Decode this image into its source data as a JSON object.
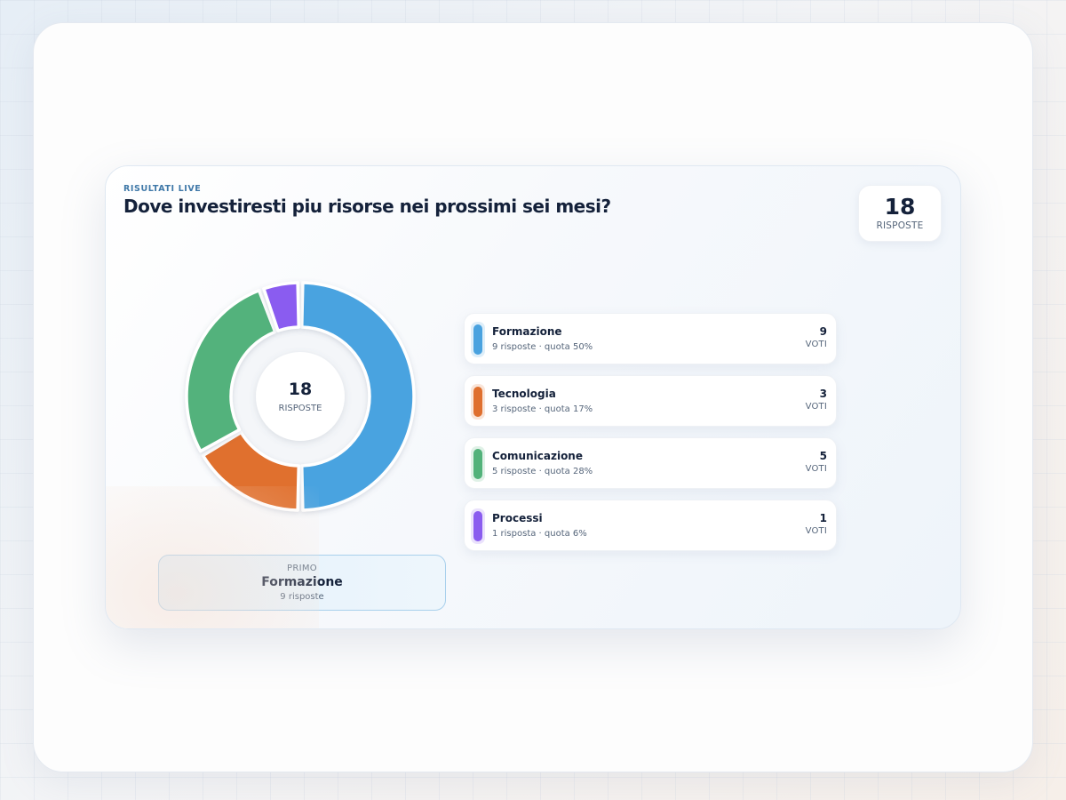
{
  "card": {
    "eyebrow": "RISULTATI LIVE",
    "question": "Dove investiresti piu risorse nei prossimi sei mesi?",
    "total": {
      "value": "18",
      "label": "RISPOSTE"
    }
  },
  "donut": {
    "center_value": "18",
    "center_label": "RISPOSTE"
  },
  "winner": {
    "eyebrow": "PRIMO",
    "name": "Formazione",
    "count": "9 risposte"
  },
  "legend": {
    "items": [
      {
        "name": "Formazione",
        "sub": "9 risposte · quota 50%",
        "value": "9",
        "unit": "VOTI"
      },
      {
        "name": "Tecnologia",
        "sub": "3 risposte · quota 17%",
        "value": "3",
        "unit": "VOTI"
      },
      {
        "name": "Comunicazione",
        "sub": "5 risposte · quota 28%",
        "value": "5",
        "unit": "VOTI"
      },
      {
        "name": "Processi",
        "sub": "1 risposta · quota 6%",
        "value": "1",
        "unit": "VOTI"
      }
    ]
  },
  "chart_data": {
    "type": "pie",
    "categories": [
      "Formazione",
      "Tecnologia",
      "Comunicazione",
      "Processi"
    ],
    "values": [
      9,
      3,
      5,
      1
    ],
    "colors": [
      "#4aa3e0",
      "#e0702f",
      "#52b27b",
      "#8a5cf0"
    ],
    "title": "Dove investiresti piu risorse nei prossimi sei mesi?"
  }
}
